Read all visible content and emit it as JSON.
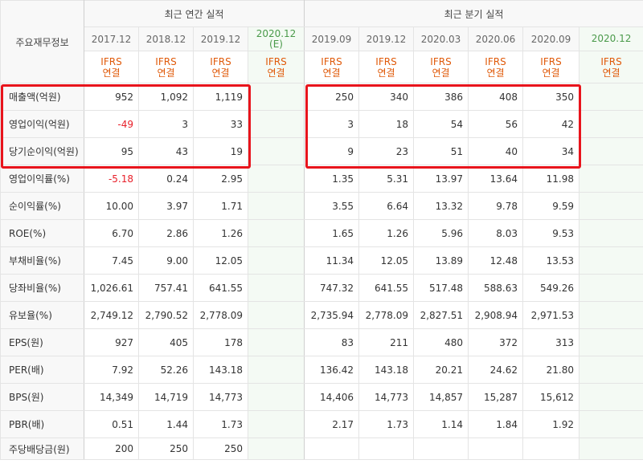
{
  "header": {
    "label": "주요재무정보",
    "annual_group": "최근 연간 실적",
    "quarter_group": "최근 분기 실적",
    "annual_periods": [
      "2017.12",
      "2018.12",
      "2019.12"
    ],
    "annual_estimate": "2020.12",
    "estimate_mark": "(E)",
    "quarter_periods": [
      "2019.09",
      "2019.12",
      "2020.03",
      "2020.06",
      "2020.09"
    ],
    "quarter_estimate": "2020.12",
    "ifrs_line1": "IFRS",
    "ifrs_line2": "연결"
  },
  "rows": [
    {
      "label": "매출액(억원)",
      "annual": [
        "952",
        "1,092",
        "1,119"
      ],
      "quarter": [
        "250",
        "340",
        "386",
        "408",
        "350"
      ]
    },
    {
      "label": "영업이익(억원)",
      "annual": [
        "-49",
        "3",
        "33"
      ],
      "quarter": [
        "3",
        "18",
        "54",
        "56",
        "42"
      ]
    },
    {
      "label": "당기순이익(억원)",
      "annual": [
        "95",
        "43",
        "19"
      ],
      "quarter": [
        "9",
        "23",
        "51",
        "40",
        "34"
      ]
    },
    {
      "label": "영업이익률(%)",
      "annual": [
        "-5.18",
        "0.24",
        "2.95"
      ],
      "quarter": [
        "1.35",
        "5.31",
        "13.97",
        "13.64",
        "11.98"
      ]
    },
    {
      "label": "순이익률(%)",
      "annual": [
        "10.00",
        "3.97",
        "1.71"
      ],
      "quarter": [
        "3.55",
        "6.64",
        "13.32",
        "9.78",
        "9.59"
      ]
    },
    {
      "label": "ROE(%)",
      "annual": [
        "6.70",
        "2.86",
        "1.26"
      ],
      "quarter": [
        "1.65",
        "1.26",
        "5.96",
        "8.03",
        "9.53"
      ]
    },
    {
      "label": "부채비율(%)",
      "annual": [
        "7.45",
        "9.00",
        "12.05"
      ],
      "quarter": [
        "11.34",
        "12.05",
        "13.89",
        "12.48",
        "13.53"
      ]
    },
    {
      "label": "당좌비율(%)",
      "annual": [
        "1,026.61",
        "757.41",
        "641.55"
      ],
      "quarter": [
        "747.32",
        "641.55",
        "517.48",
        "588.63",
        "549.26"
      ]
    },
    {
      "label": "유보율(%)",
      "annual": [
        "2,749.12",
        "2,790.52",
        "2,778.09"
      ],
      "quarter": [
        "2,735.94",
        "2,778.09",
        "2,827.51",
        "2,908.94",
        "2,971.53"
      ]
    },
    {
      "label": "EPS(원)",
      "annual": [
        "927",
        "405",
        "178"
      ],
      "quarter": [
        "83",
        "211",
        "480",
        "372",
        "313"
      ]
    },
    {
      "label": "PER(배)",
      "annual": [
        "7.92",
        "52.26",
        "143.18"
      ],
      "quarter": [
        "136.42",
        "143.18",
        "20.21",
        "24.62",
        "21.80"
      ]
    },
    {
      "label": "BPS(원)",
      "annual": [
        "14,349",
        "14,719",
        "14,773"
      ],
      "quarter": [
        "14,406",
        "14,773",
        "14,857",
        "15,287",
        "15,612"
      ]
    },
    {
      "label": "PBR(배)",
      "annual": [
        "0.51",
        "1.44",
        "1.73"
      ],
      "quarter": [
        "2.17",
        "1.73",
        "1.14",
        "1.84",
        "1.92"
      ]
    },
    {
      "label": "주당배당금(원)",
      "annual": [
        "200",
        "250",
        "250"
      ],
      "quarter": [
        "",
        "",
        "",
        "",
        ""
      ]
    }
  ],
  "highlight_color": "#e8141c",
  "negative_color": "#e8202a",
  "ifrs_color": "#e05a0a"
}
